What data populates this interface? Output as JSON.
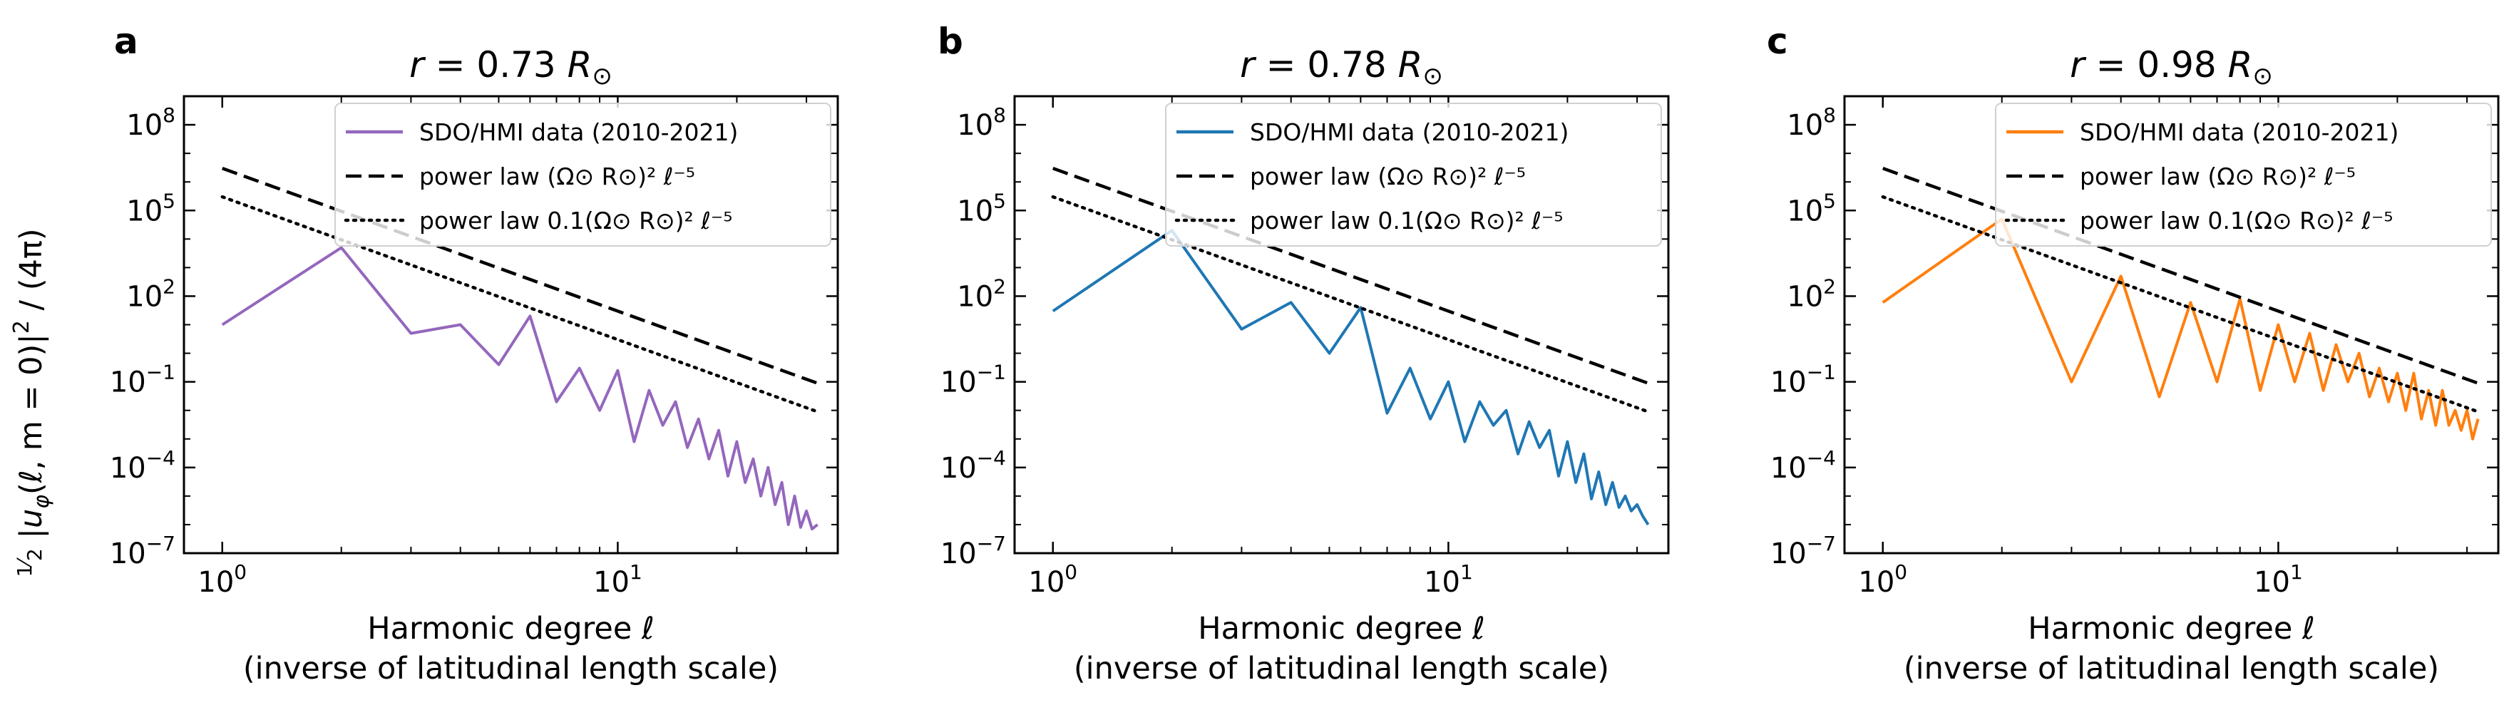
{
  "figure": {
    "ylabel": "½ |u_φ(ℓ, m=0)|² / (4π)",
    "ylabel_parts": {
      "frac_num": "1",
      "frac_den": "2",
      "main": "|u",
      "sub": "φ",
      "args": "(ℓ, m = 0)|",
      "sup": "2",
      "tail": " / (4π)"
    },
    "legend": {
      "data_label": "SDO/HMI data (2010-2021)",
      "power_law_label": "power law (Ω⊙ R⊙)² ℓ⁻⁵",
      "power_law_scaled_label": "power law 0.1(Ω⊙ R⊙)² ℓ⁻⁵",
      "location": "top-right"
    },
    "x_tick_labels": {
      "t0": {
        "base": "10",
        "exp": "0"
      },
      "t1": {
        "base": "10",
        "exp": "1"
      }
    },
    "y_tick_labels": [
      {
        "base": "10",
        "exp": "−7"
      },
      {
        "base": "10",
        "exp": "−4"
      },
      {
        "base": "10",
        "exp": "−1"
      },
      {
        "base": "10",
        "exp": "2"
      },
      {
        "base": "10",
        "exp": "5"
      },
      {
        "base": "10",
        "exp": "8"
      }
    ],
    "colors": {
      "a": "#9467bd",
      "b": "#1f77b4",
      "c": "#ff7f0e",
      "reference": "#000000"
    }
  },
  "chart_data": [
    {
      "type": "line",
      "panel": "a",
      "title": "r = 0.73 R⊙",
      "title_parts": {
        "lhs": "r = 0.73",
        "unit": "R",
        "sub": "⊙"
      },
      "xlabel": "Harmonic degree ℓ",
      "xlabel_line2": "(inverse of latitudinal length scale)",
      "xscale": "log",
      "yscale": "log",
      "xlim": [
        0.8,
        36
      ],
      "ylim": [
        1e-07,
        1000000000.0
      ],
      "series": [
        {
          "name": "SDO/HMI data (2010-2021)",
          "style": "solid",
          "x": [
            1,
            2,
            3,
            4,
            5,
            6,
            7,
            8,
            9,
            10,
            11,
            12,
            13,
            14,
            15,
            16,
            17,
            18,
            19,
            20,
            21,
            22,
            23,
            24,
            25,
            26,
            27,
            28,
            29,
            30,
            31,
            32
          ],
          "y": [
            10,
            5000,
            5,
            10,
            0.4,
            20,
            0.02,
            0.3,
            0.01,
            0.25,
            0.0008,
            0.05,
            0.003,
            0.02,
            0.0005,
            0.005,
            0.0002,
            0.002,
            5e-05,
            0.0008,
            3e-05,
            0.0002,
            1e-05,
            0.0001,
            5e-06,
            3e-05,
            1e-06,
            1e-05,
            8e-07,
            3e-06,
            7e-07,
            1e-06
          ]
        },
        {
          "name": "power law (Ω⊙ R⊙)² ℓ⁻⁵",
          "style": "dashed",
          "x": [
            1,
            32
          ],
          "y": [
            3000000.0,
            0.0894
          ]
        },
        {
          "name": "power law 0.1(Ω⊙ R⊙)² ℓ⁻⁵",
          "style": "dotted",
          "x": [
            1,
            32
          ],
          "y": [
            300000.0,
            0.00894
          ]
        }
      ]
    },
    {
      "type": "line",
      "panel": "b",
      "title": "r = 0.78 R⊙",
      "title_parts": {
        "lhs": "r = 0.78",
        "unit": "R",
        "sub": "⊙"
      },
      "xlabel": "Harmonic degree ℓ",
      "xlabel_line2": "(inverse of latitudinal length scale)",
      "xscale": "log",
      "yscale": "log",
      "xlim": [
        0.8,
        36
      ],
      "ylim": [
        1e-07,
        1000000000.0
      ],
      "series": [
        {
          "name": "SDO/HMI data (2010-2021)",
          "style": "solid",
          "x": [
            1,
            2,
            3,
            4,
            5,
            6,
            7,
            8,
            9,
            10,
            11,
            12,
            13,
            14,
            15,
            16,
            17,
            18,
            19,
            20,
            21,
            22,
            23,
            24,
            25,
            26,
            27,
            28,
            29,
            30,
            31,
            32
          ],
          "y": [
            30,
            20000,
            7,
            60,
            1,
            40,
            0.008,
            0.3,
            0.005,
            0.1,
            0.0008,
            0.02,
            0.003,
            0.01,
            0.0003,
            0.004,
            0.0005,
            0.002,
            5e-05,
            0.0008,
            3e-05,
            0.0003,
            8e-06,
            7e-05,
            5e-06,
            3e-05,
            4e-06,
            1e-05,
            3e-06,
            5e-06,
            2e-06,
            1e-06
          ]
        },
        {
          "name": "power law (Ω⊙ R⊙)² ℓ⁻⁵",
          "style": "dashed",
          "x": [
            1,
            32
          ],
          "y": [
            3000000.0,
            0.0894
          ]
        },
        {
          "name": "power law 0.1(Ω⊙ R⊙)² ℓ⁻⁵",
          "style": "dotted",
          "x": [
            1,
            32
          ],
          "y": [
            300000.0,
            0.00894
          ]
        }
      ]
    },
    {
      "type": "line",
      "panel": "c",
      "title": "r = 0.98 R⊙",
      "title_parts": {
        "lhs": "r = 0.98",
        "unit": "R",
        "sub": "⊙"
      },
      "xlabel": "Harmonic degree ℓ",
      "xlabel_line2": "(inverse of latitudinal length scale)",
      "xscale": "log",
      "yscale": "log",
      "xlim": [
        0.8,
        36
      ],
      "ylim": [
        1e-07,
        1000000000.0
      ],
      "series": [
        {
          "name": "SDO/HMI data (2010-2021)",
          "style": "solid",
          "x": [
            1,
            2,
            3,
            4,
            5,
            6,
            7,
            8,
            9,
            10,
            11,
            12,
            13,
            14,
            15,
            16,
            17,
            18,
            19,
            20,
            21,
            22,
            23,
            24,
            25,
            26,
            27,
            28,
            29,
            30,
            31,
            32
          ],
          "y": [
            60,
            50000,
            0.1,
            500,
            0.03,
            60,
            0.1,
            80,
            0.05,
            10,
            0.1,
            5,
            0.05,
            2,
            0.1,
            1,
            0.03,
            0.3,
            0.02,
            0.2,
            0.01,
            0.2,
            0.005,
            0.05,
            0.003,
            0.05,
            0.003,
            0.01,
            0.002,
            0.01,
            0.001,
            0.005
          ]
        },
        {
          "name": "power law (Ω⊙ R⊙)² ℓ⁻⁵",
          "style": "dashed",
          "x": [
            1,
            32
          ],
          "y": [
            3000000.0,
            0.0894
          ]
        },
        {
          "name": "power law 0.1(Ω⊙ R⊙)² ℓ⁻⁵",
          "style": "dotted",
          "x": [
            1,
            32
          ],
          "y": [
            300000.0,
            0.00894
          ]
        }
      ]
    }
  ]
}
